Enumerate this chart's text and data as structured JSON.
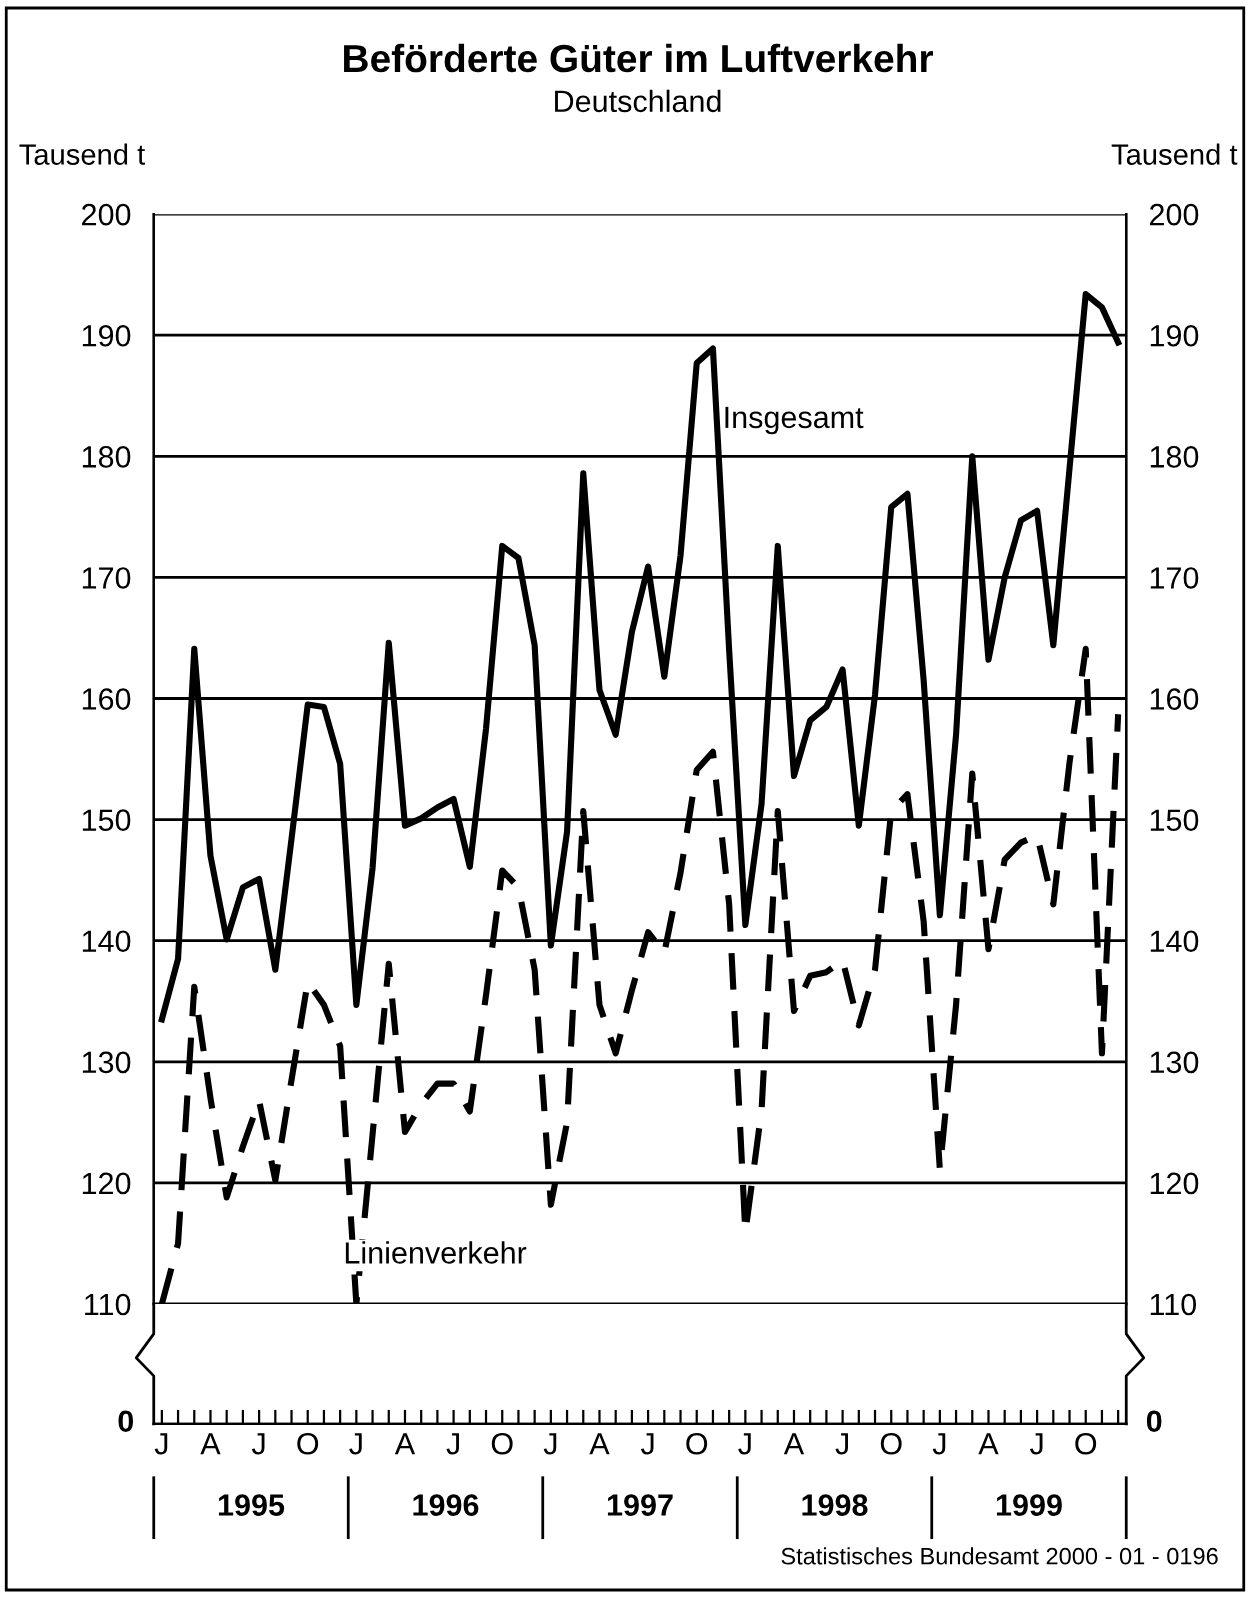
{
  "chart_data": {
    "type": "line",
    "title": "Beförderte Güter im Luftverkehr",
    "subtitle": "Deutschland",
    "ylabel": "Tausend t",
    "y2label": "Tausend t",
    "categories": [
      "J",
      null,
      null,
      "A",
      null,
      null,
      "J",
      null,
      null,
      "O",
      null,
      null,
      "J",
      null,
      null,
      "A",
      null,
      null,
      "J",
      null,
      null,
      "O",
      null,
      null,
      "J",
      null,
      null,
      "A",
      null,
      null,
      "J",
      null,
      null,
      "O",
      null,
      null,
      "J",
      null,
      null,
      "A",
      null,
      null,
      "J",
      null,
      null,
      "O",
      null,
      null,
      "J",
      null,
      null,
      "A",
      null,
      null,
      "J",
      null,
      null,
      "O",
      null,
      null
    ],
    "series": [
      {
        "name": "Insgesamt",
        "color": "#000000",
        "line_style": "solid",
        "values": [
          133.5,
          138.5,
          164.1,
          147,
          140.1,
          144.4,
          145.1,
          137.6,
          148.4,
          159.5,
          159.3,
          154.6,
          134.7,
          146,
          164.6,
          149.5,
          150.1,
          151,
          151.7,
          146.1,
          157.5,
          172.6,
          171.6,
          164.4,
          139.6,
          149,
          178.6,
          160.7,
          157,
          165.5,
          170.9,
          161.8,
          171.8,
          187.7,
          188.9,
          164,
          141.3,
          151.3,
          172.6,
          153.6,
          158.2,
          159.3,
          162.4,
          149.5,
          160.3,
          175.8,
          176.9,
          161.5,
          142.1,
          157,
          180,
          163.2,
          170,
          174.7,
          175.5,
          164.4,
          179,
          193.4,
          192.3,
          189.4
        ]
      },
      {
        "name": "Linienverkehr",
        "color": "#000000",
        "line_style": "dashed",
        "values": [
          110,
          115,
          136.2,
          127,
          118.8,
          123,
          126.8,
          120.2,
          128.5,
          136.6,
          134.7,
          131.3,
          110,
          124,
          138.1,
          124.2,
          126.5,
          128.2,
          128.2,
          125.9,
          135.5,
          145.8,
          144.4,
          137.6,
          118.2,
          125,
          150.7,
          134.7,
          130.7,
          135.9,
          140.7,
          139,
          145.6,
          154.1,
          155.6,
          143,
          115.9,
          126,
          150.7,
          134.2,
          137.1,
          137.4,
          138.4,
          133,
          137.6,
          150.7,
          152.1,
          141.6,
          121.1,
          134.7,
          153.8,
          139.3,
          146.7,
          148.1,
          148.7,
          143,
          154.7,
          164.1,
          130.7,
          158.7
        ]
      }
    ],
    "ylim": [
      110,
      200
    ],
    "yticks": [
      110,
      120,
      130,
      140,
      150,
      160,
      170,
      180,
      190,
      200
    ],
    "y2lim": [
      110,
      200
    ],
    "y2ticks": [
      110,
      120,
      130,
      140,
      150,
      160,
      170,
      180,
      190,
      200
    ],
    "grid": "y",
    "legend": false,
    "marker": "none",
    "annotations": [
      "0",
      "0",
      "1995",
      "1996",
      "1997",
      "1998",
      "1999",
      "Statistisches Bundesamt 2000 - 01 - 0196"
    ]
  }
}
